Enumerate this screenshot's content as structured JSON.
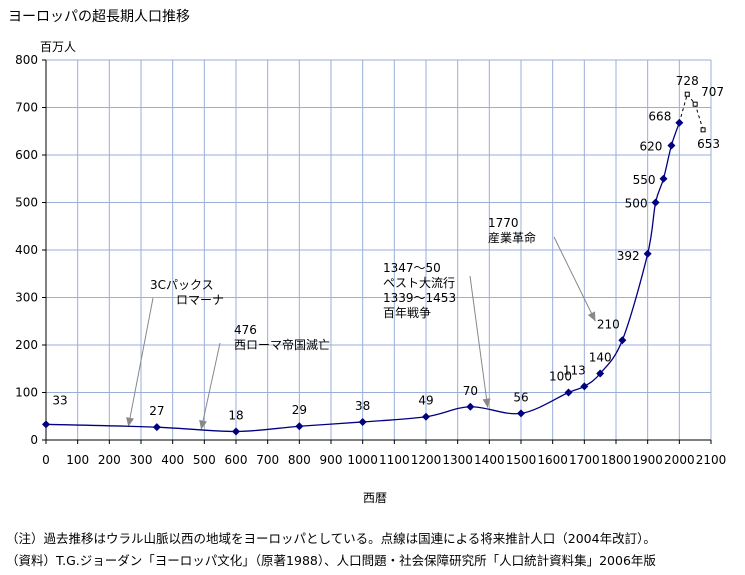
{
  "title": "ヨーロッパの超長期人口推移",
  "notes": [
    "（注）過去推移はウラル山脈以西の地域をヨーロッパとしている。点線は国連による将来推計人口（2004年改訂）。",
    "（資料）T.G.ジョーダン「ヨーロッパ文化」（原著1988）、人口問題・社会保障研究所「人口統計資料集」2006年版"
  ],
  "chart_data": {
    "type": "line",
    "title": "ヨーロッパの超長期人口推移",
    "xlabel": "西暦",
    "ylabel": "百万人",
    "xlim": [
      0,
      2100
    ],
    "ylim": [
      0,
      800
    ],
    "xticks": [
      0,
      100,
      200,
      300,
      400,
      500,
      600,
      700,
      800,
      900,
      1000,
      1100,
      1200,
      1300,
      1400,
      1500,
      1600,
      1700,
      1800,
      1900,
      2000,
      2100
    ],
    "yticks": [
      0,
      100,
      200,
      300,
      400,
      500,
      600,
      700,
      800
    ],
    "grid": true,
    "series": [
      {
        "name": "",
        "style": "solid",
        "color": "#000080",
        "points": [
          {
            "x": 0,
            "y": 33,
            "label": "33"
          },
          {
            "x": 350,
            "y": 27,
            "label": "27"
          },
          {
            "x": 600,
            "y": 18,
            "label": "18"
          },
          {
            "x": 800,
            "y": 29,
            "label": "29"
          },
          {
            "x": 1000,
            "y": 38,
            "label": "38"
          },
          {
            "x": 1200,
            "y": 49,
            "label": "49"
          },
          {
            "x": 1340,
            "y": 70,
            "label": "70"
          },
          {
            "x": 1500,
            "y": 56,
            "label": "56"
          },
          {
            "x": 1650,
            "y": 100,
            "label": "100"
          },
          {
            "x": 1700,
            "y": 113,
            "label": "113"
          },
          {
            "x": 1750,
            "y": 140,
            "label": "140"
          },
          {
            "x": 1820,
            "y": 210,
            "label": "210"
          },
          {
            "x": 1900,
            "y": 392,
            "label": "392"
          },
          {
            "x": 1925,
            "y": 500,
            "label": "500"
          },
          {
            "x": 1950,
            "y": 550,
            "label": "550"
          },
          {
            "x": 1975,
            "y": 620,
            "label": "620"
          },
          {
            "x": 2000,
            "y": 668,
            "label": "668"
          }
        ]
      },
      {
        "name": "",
        "style": "dotted",
        "color": "#000000",
        "points": [
          {
            "x": 2000,
            "y": 668,
            "label": ""
          },
          {
            "x": 2025,
            "y": 728,
            "label": "728"
          },
          {
            "x": 2050,
            "y": 707,
            "label": "707"
          },
          {
            "x": 2075,
            "y": 653,
            "label": "653"
          }
        ]
      }
    ],
    "annotations": [
      {
        "lines": [
          "3Cパックス",
          "ロマーナ"
        ],
        "arrow_to": {
          "x": 260,
          "y": 28
        }
      },
      {
        "lines": [
          "476",
          "西ローマ帝国滅亡"
        ],
        "arrow_to": {
          "x": 490,
          "y": 22
        }
      },
      {
        "lines": [
          "1347～50",
          "ペスト大流行",
          "1339～1453",
          "百年戦争"
        ],
        "arrow_to": {
          "x": 1395,
          "y": 68
        }
      },
      {
        "lines": [
          "1770",
          "産業革命"
        ],
        "arrow_to": {
          "x": 1735,
          "y": 250
        }
      }
    ]
  }
}
